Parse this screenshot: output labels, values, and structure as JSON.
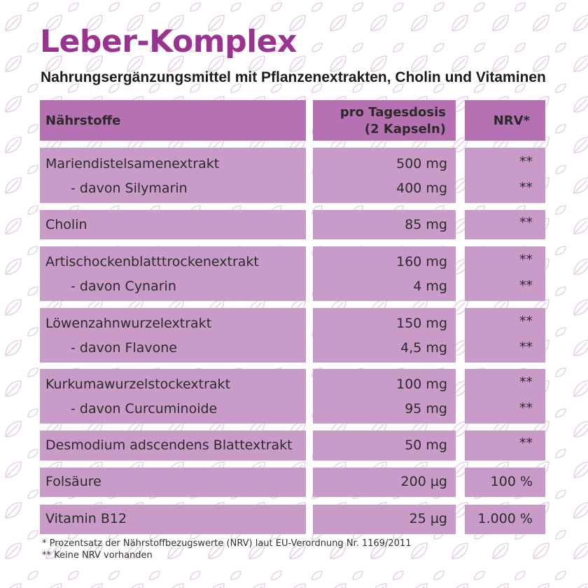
{
  "colors": {
    "title": "#99338f",
    "header_cell": "#b671b2",
    "body_cell": "#c99bc9",
    "pattern": "#e6d3e6"
  },
  "background": {
    "pattern_icon": "leaf-icon"
  },
  "title": "Leber-Komplex",
  "subtitle": "Nahrungsergänzungsmittel mit Pflanzenextrakten, Cholin und Vitaminen",
  "table": {
    "headers": {
      "name": "Nährstoffe",
      "dose_line1": "pro Tagesdosis",
      "dose_line2": "(2 Kapseln)",
      "nrv": "NRV*"
    },
    "groups": [
      {
        "rows": [
          {
            "name": "Mariendistelsamenextrakt",
            "dose": "500 mg",
            "nrv": "**"
          },
          {
            "name": "- davon Silymarin",
            "dose": "400 mg",
            "nrv": "**"
          }
        ]
      },
      {
        "rows": [
          {
            "name": "Cholin",
            "dose": "85 mg",
            "nrv": "**"
          }
        ]
      },
      {
        "rows": [
          {
            "name": "Artischockenblatttrockenextrakt",
            "dose": "160 mg",
            "nrv": "**"
          },
          {
            "name": "- davon Cynarin",
            "dose": "4 mg",
            "nrv": "**"
          }
        ]
      },
      {
        "rows": [
          {
            "name": "Löwenzahnwurzelextrakt",
            "dose": "150 mg",
            "nrv": "**"
          },
          {
            "name": "- davon Flavone",
            "dose": "4,5 mg",
            "nrv": "**"
          }
        ]
      },
      {
        "rows": [
          {
            "name": "Kurkumawurzelstockextrakt",
            "dose": "100 mg",
            "nrv": "**"
          },
          {
            "name": "- davon Curcuminoide",
            "dose": "95 mg",
            "nrv": "**"
          }
        ]
      },
      {
        "rows": [
          {
            "name": "Desmodium adscendens Blattextrakt",
            "dose": "50 mg",
            "nrv": "**"
          }
        ]
      },
      {
        "rows": [
          {
            "name": "Folsäure",
            "dose": "200 µg",
            "nrv": "100 %"
          }
        ]
      },
      {
        "rows": [
          {
            "name": "Vitamin B12",
            "dose": "25 µg",
            "nrv": "1.000 %"
          }
        ]
      }
    ]
  },
  "footnotes": [
    "* Prozentsatz der Nährstoffbezugswerte (NRV) laut EU-Verordnung Nr. 1169/2011",
    "** Keine NRV vorhanden"
  ]
}
